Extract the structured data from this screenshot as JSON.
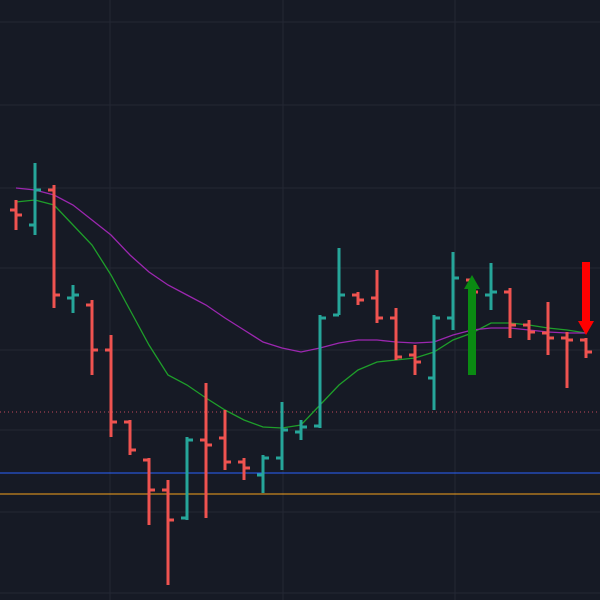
{
  "chart_data": {
    "type": "ohlc",
    "ylim": [
      0,
      600
    ],
    "up_color": "#26a69a",
    "down_color": "#ef5350",
    "open": [
      390,
      375,
      410,
      302,
      295,
      250,
      178,
      140,
      110,
      82,
      160,
      162,
      138,
      125,
      142,
      168,
      174,
      285,
      305,
      302,
      282,
      245,
      222,
      282,
      320,
      305,
      308,
      275,
      267,
      262,
      260
    ],
    "high": [
      400,
      437,
      415,
      315,
      300,
      265,
      180,
      142,
      120,
      163,
      217,
      190,
      142,
      145,
      198,
      180,
      285,
      352,
      308,
      330,
      292,
      255,
      285,
      348,
      322,
      337,
      312,
      280,
      298,
      268,
      262
    ],
    "low": [
      370,
      365,
      292,
      287,
      225,
      163,
      145,
      75,
      15,
      80,
      82,
      130,
      120,
      107,
      130,
      160,
      172,
      285,
      295,
      277,
      240,
      225,
      190,
      270,
      302,
      290,
      262,
      260,
      245,
      212,
      242
    ],
    "close": [
      385,
      410,
      305,
      305,
      250,
      178,
      150,
      110,
      80,
      160,
      155,
      138,
      132,
      142,
      170,
      173,
      282,
      305,
      300,
      282,
      243,
      238,
      282,
      322,
      308,
      308,
      275,
      268,
      262,
      260,
      248
    ],
    "moving_averages": [
      {
        "color": "#1e9e2a",
        "values": [
          398,
          400,
          395,
          375,
          355,
          325,
          290,
          255,
          225,
          215,
          202,
          190,
          180,
          173,
          172,
          175,
          195,
          215,
          230,
          238,
          240,
          242,
          248,
          260,
          267,
          277,
          277,
          275,
          272,
          270,
          267
        ]
      },
      {
        "color": "#9c27b0",
        "values": [
          412,
          410,
          405,
          395,
          380,
          365,
          345,
          328,
          315,
          305,
          295,
          282,
          270,
          258,
          252,
          248,
          252,
          257,
          260,
          260,
          258,
          257,
          258,
          265,
          270,
          272,
          272,
          270,
          268,
          267,
          267
        ]
      }
    ],
    "levels": [
      {
        "value": 188,
        "color": "#c2485a",
        "dashed": true
      },
      {
        "value": 127,
        "color": "#2962ff",
        "dashed": false
      },
      {
        "value": 106,
        "color": "#f7a21b",
        "dashed": false
      }
    ],
    "arrows": [
      {
        "index": 24,
        "from": 225,
        "to": 325,
        "color": "#0a8a12"
      },
      {
        "index": 30,
        "from": 338,
        "to": 265,
        "color": "#ff0000"
      }
    ]
  }
}
